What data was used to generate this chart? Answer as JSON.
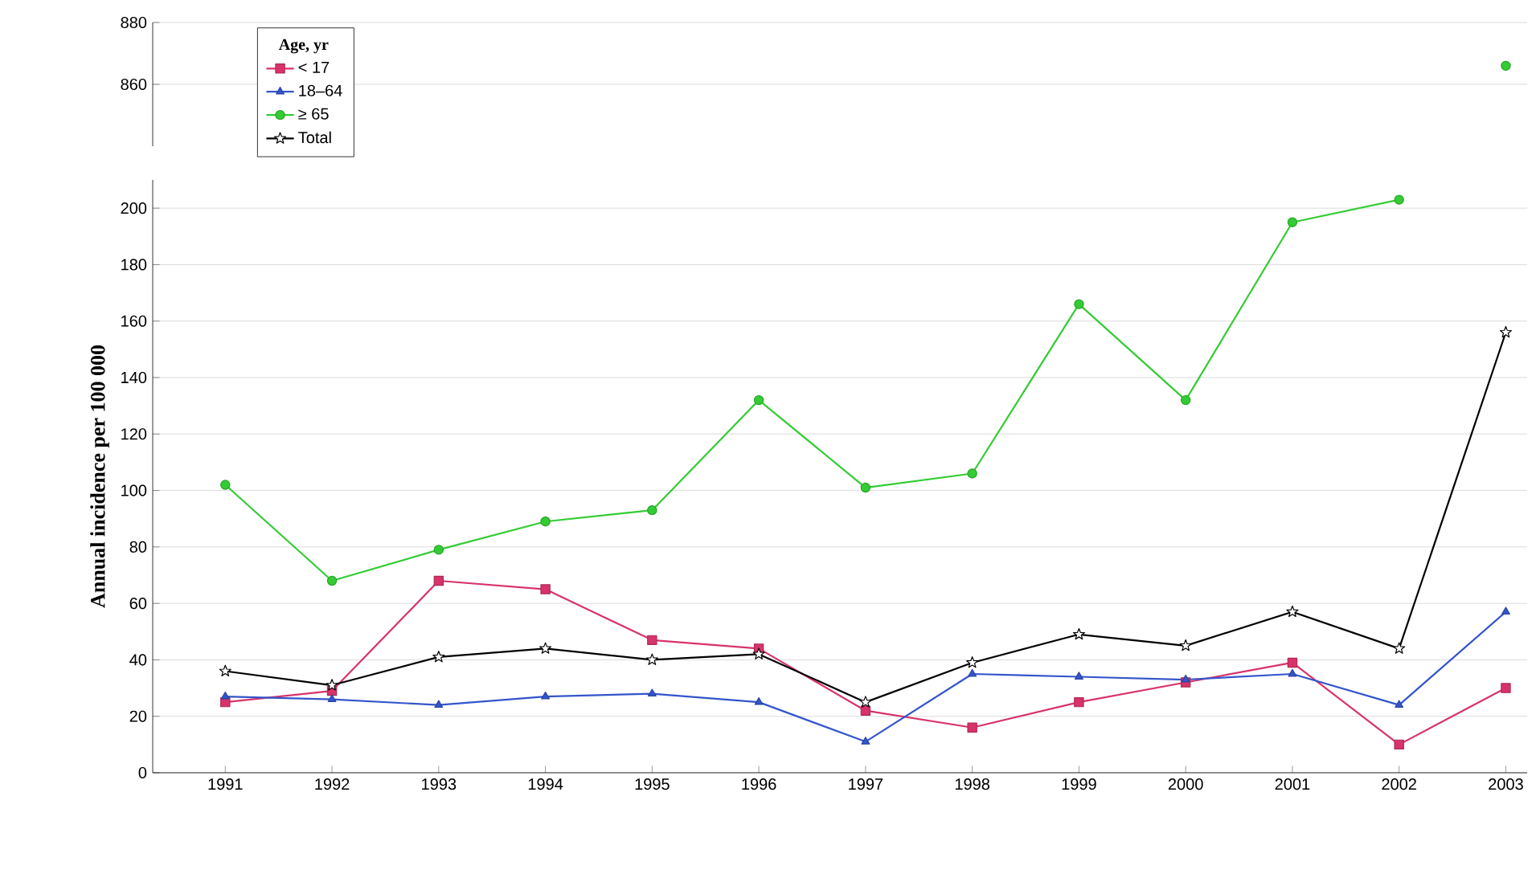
{
  "chart_data": [
    {
      "type": "line",
      "categories": [
        "1991",
        "1992",
        "1993",
        "1994",
        "1995",
        "1996",
        "1997",
        "1998",
        "1999",
        "2000",
        "2001",
        "2002",
        "2003"
      ],
      "ylim": [
        840,
        880
      ],
      "yticks": [
        860,
        880
      ],
      "grid": "y",
      "tick_labels": "y",
      "series": [
        {
          "color": "#33cc33",
          "marker": "circle",
          "values": [
            null,
            null,
            null,
            null,
            null,
            null,
            null,
            null,
            null,
            null,
            null,
            null,
            866
          ]
        }
      ]
    },
    {
      "type": "line",
      "categories": [
        "1991",
        "1992",
        "1993",
        "1994",
        "1995",
        "1996",
        "1997",
        "1998",
        "1999",
        "2000",
        "2001",
        "2002",
        "2003"
      ],
      "ylim": [
        0,
        210
      ],
      "yticks": [
        0,
        20,
        40,
        60,
        80,
        100,
        120,
        140,
        160,
        180,
        200
      ],
      "grid": "y",
      "ylabel": "Annual incidence per 100 000",
      "legend_title": "Age, yr",
      "legend": "top left",
      "series": [
        {
          "name": "< 17",
          "color": "#d8336a",
          "marker": "square",
          "values": [
            25,
            29,
            68,
            65,
            47,
            44,
            22,
            16,
            25,
            32,
            39,
            10,
            30
          ]
        },
        {
          "name": "18–64",
          "color": "#3355cc",
          "marker": "triangle",
          "values": [
            27,
            26,
            24,
            27,
            28,
            25,
            11,
            35,
            34,
            33,
            35,
            24,
            57
          ]
        },
        {
          "name": "≥ 65",
          "color": "#33cc33",
          "marker": "circle",
          "values": [
            102,
            68,
            79,
            89,
            93,
            132,
            101,
            106,
            166,
            132,
            195,
            203,
            null
          ]
        },
        {
          "name": "Total",
          "color": "#000000",
          "marker": "star",
          "values": [
            36,
            31,
            41,
            44,
            40,
            42,
            25,
            39,
            49,
            45,
            57,
            44,
            156
          ]
        }
      ]
    }
  ]
}
